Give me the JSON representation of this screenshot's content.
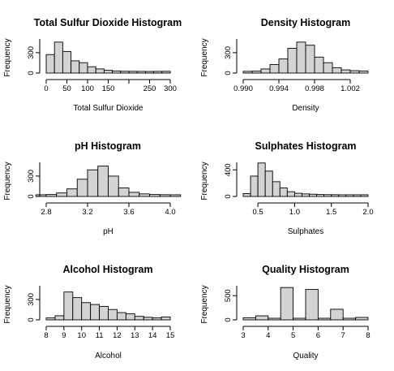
{
  "chart_data": [
    {
      "type": "bar",
      "title": "Total Sulfur Dioxide Histogram",
      "xlabel": "Total Sulfur Dioxide",
      "ylabel": "Frequency",
      "xlim": [
        0,
        300
      ],
      "ylim": [
        0,
        520
      ],
      "xticks": [
        0,
        50,
        100,
        150,
        200,
        250,
        300
      ],
      "xtick_labels": [
        "0",
        "50",
        "100",
        "150",
        "",
        "250",
        "300"
      ],
      "yticks": [
        0,
        300
      ],
      "bin_edges": [
        0,
        20,
        40,
        60,
        80,
        100,
        120,
        140,
        160,
        180,
        200,
        220,
        240,
        260,
        280,
        300
      ],
      "values": [
        270,
        470,
        320,
        170,
        140,
        75,
        40,
        18,
        8,
        3,
        2,
        1,
        0,
        1,
        2
      ],
      "grid": false
    },
    {
      "type": "bar",
      "title": "Density Histogram",
      "xlabel": "Density",
      "ylabel": "Frequency",
      "xlim": [
        0.99,
        1.004
      ],
      "ylim": [
        0,
        520
      ],
      "xticks": [
        0.99,
        0.994,
        0.998,
        1.002
      ],
      "xtick_labels": [
        "0.990",
        "0.994",
        "0.998",
        "1.002"
      ],
      "yticks": [
        0,
        300
      ],
      "bin_edges": [
        0.99,
        0.991,
        0.992,
        0.993,
        0.994,
        0.995,
        0.996,
        0.997,
        0.998,
        0.999,
        1.0,
        1.001,
        1.002,
        1.003,
        1.004
      ],
      "values": [
        2,
        5,
        40,
        110,
        200,
        370,
        470,
        420,
        230,
        140,
        60,
        25,
        12,
        6
      ],
      "grid": false
    },
    {
      "type": "bar",
      "title": "pH Histogram",
      "xlabel": "pH",
      "ylabel": "Frequency",
      "xlim": [
        2.8,
        4.0
      ],
      "ylim": [
        0,
        520
      ],
      "xticks": [
        2.8,
        3.2,
        3.6,
        4.0
      ],
      "xtick_labels": [
        "2.8",
        "3.2",
        "3.6",
        "4.0"
      ],
      "yticks": [
        0,
        300
      ],
      "bin_edges": [
        2.7,
        2.8,
        2.9,
        3.0,
        3.1,
        3.2,
        3.3,
        3.4,
        3.5,
        3.6,
        3.7,
        3.8,
        3.9,
        4.0,
        4.1
      ],
      "values": [
        1,
        5,
        30,
        95,
        250,
        400,
        460,
        300,
        110,
        40,
        15,
        5,
        2,
        1
      ],
      "grid": false
    },
    {
      "type": "bar",
      "title": "Sulphates Histogram",
      "xlabel": "Sulphates",
      "ylabel": "Frequency",
      "xlim": [
        0.3,
        2.0
      ],
      "ylim": [
        0,
        520
      ],
      "xticks": [
        0.5,
        1.0,
        1.5,
        2.0
      ],
      "xtick_labels": [
        "0.5",
        "1.0",
        "1.5",
        "2.0"
      ],
      "yticks": [
        0,
        400
      ],
      "bin_edges": [
        0.3,
        0.4,
        0.5,
        0.6,
        0.7,
        0.8,
        0.9,
        1.0,
        1.1,
        1.2,
        1.3,
        1.4,
        1.5,
        1.6,
        1.7,
        1.8,
        1.9,
        2.0
      ],
      "values": [
        20,
        300,
        510,
        380,
        210,
        110,
        50,
        25,
        15,
        10,
        5,
        3,
        2,
        1,
        1,
        1,
        1
      ],
      "grid": false
    },
    {
      "type": "bar",
      "title": "Alcohol Histogram",
      "xlabel": "Alcohol",
      "ylabel": "Frequency",
      "xlim": [
        8,
        15
      ],
      "ylim": [
        0,
        520
      ],
      "xticks": [
        8,
        9,
        10,
        11,
        12,
        13,
        14,
        15
      ],
      "xtick_labels": [
        "8",
        "9",
        "10",
        "11",
        "12",
        "13",
        "14",
        "15"
      ],
      "yticks": [
        0,
        300
      ],
      "bin_edges": [
        8,
        8.5,
        9,
        9.5,
        10,
        10.5,
        11,
        11.5,
        12,
        12.5,
        13,
        13.5,
        14,
        14.5,
        15
      ],
      "values": [
        5,
        40,
        420,
        330,
        250,
        220,
        190,
        140,
        90,
        70,
        30,
        15,
        5,
        20
      ],
      "grid": false
    },
    {
      "type": "bar",
      "title": "Quality Histogram",
      "xlabel": "Quality",
      "ylabel": "Frequency",
      "xlim": [
        3,
        8
      ],
      "ylim": [
        0,
        720
      ],
      "xticks": [
        3,
        4,
        5,
        6,
        7,
        8
      ],
      "xtick_labels": [
        "3",
        "4",
        "5",
        "6",
        "7",
        "8"
      ],
      "yticks": [
        0,
        500
      ],
      "bin_edges": [
        3,
        3.5,
        4,
        4.5,
        5,
        5.5,
        6,
        6.5,
        7,
        7.5,
        8
      ],
      "values": [
        10,
        53,
        0,
        681,
        0,
        638,
        0,
        199,
        0,
        18
      ],
      "grid": false
    }
  ]
}
